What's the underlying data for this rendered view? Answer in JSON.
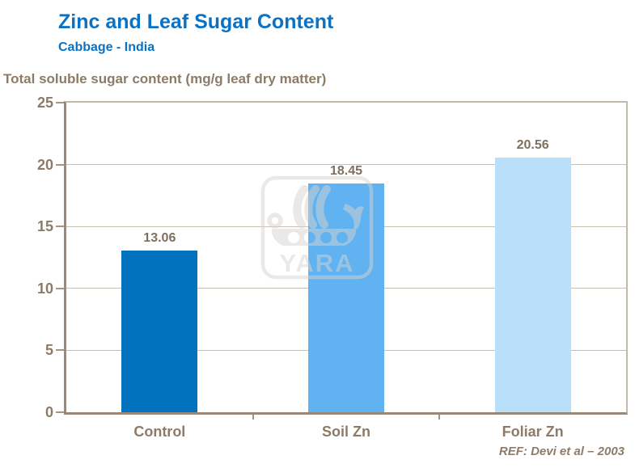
{
  "header": {
    "title": "Zinc and Leaf Sugar Content",
    "subtitle": "Cabbage - India"
  },
  "chart_data": {
    "type": "bar",
    "title": "Zinc and Leaf Sugar Content",
    "subtitle": "Cabbage - India",
    "ylabel": "Total soluble sugar content (mg/g leaf dry matter)",
    "xlabel": "",
    "categories": [
      "Control",
      "Soil Zn",
      "Foliar Zn"
    ],
    "values": [
      13.06,
      18.45,
      20.56
    ],
    "value_labels": [
      "13.06",
      "18.45",
      "20.56"
    ],
    "bar_colors": [
      "#0072BE",
      "#61B2F1",
      "#B9DFFA"
    ],
    "ylim": [
      0,
      25
    ],
    "yticks": [
      0,
      5,
      10,
      15,
      20,
      25
    ],
    "ytick_labels": [
      "0",
      "5",
      "10",
      "15",
      "20",
      "25"
    ],
    "grid": true,
    "legend": false,
    "legend_position": "none"
  },
  "watermark": {
    "text": "YARA"
  },
  "footer": {
    "reference": "REF: Devi et al – 2003"
  },
  "colors": {
    "title_blue": "#0A72C4",
    "axis_text": "#8C7B68",
    "value_text": "#7E6F5E",
    "axis_line": "#9A8977",
    "gridline": "#C9BFB2",
    "watermark_gray": "#D6D4D0",
    "background": "#FFFFFF"
  }
}
